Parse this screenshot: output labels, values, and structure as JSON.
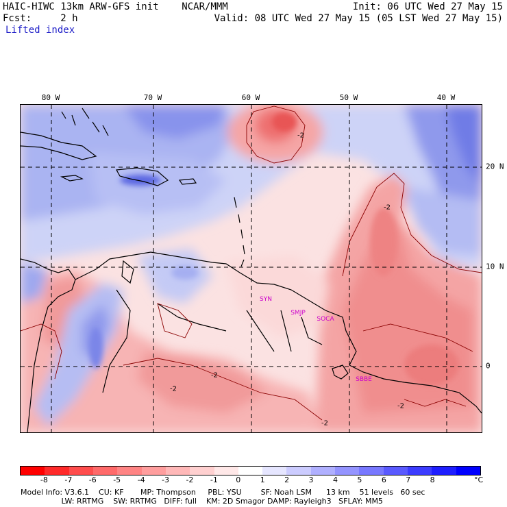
{
  "header": {
    "model_title": "HAIC-HIWC 13km ARW-GFS init    NCAR/MMM",
    "init_text": "Init: 06 UTC Wed 27 May 15",
    "fcst_text": "Fcst:     2 h",
    "valid_text": "Valid: 08 UTC Wed 27 May 15 (05 LST Wed 27 May 15)",
    "field_name": "Lifted index"
  },
  "map": {
    "longitude_labels": [
      "80 W",
      "70 W",
      "60 W",
      "50 W",
      "40 W"
    ],
    "latitude_labels": [
      "20 N",
      "10 N",
      "0"
    ],
    "stations": [
      "SYN",
      "SMJP",
      "SOCA",
      "SBBE"
    ],
    "contour_label": "-2",
    "colors": {
      "coastline": "#000000",
      "contour": "#8a0000",
      "grid": "#000000",
      "station": "#cc00cc"
    }
  },
  "colorbar": {
    "tick_labels": [
      "-8",
      "-7",
      "-6",
      "-5",
      "-4",
      "-3",
      "-2",
      "-1",
      "0",
      "1",
      "2",
      "3",
      "4",
      "5",
      "6",
      "7",
      "8"
    ],
    "unit": "°C",
    "colors": [
      "#ff0000",
      "#ff2a2a",
      "#ff4d4d",
      "#ff6a6a",
      "#ff8484",
      "#ff9e9e",
      "#ffb8b8",
      "#ffd0d0",
      "#ffe8e8",
      "#ffffff",
      "#e6e6ff",
      "#ccccff",
      "#b0b0ff",
      "#9494ff",
      "#7878ff",
      "#5a5aff",
      "#3c3cff",
      "#1e1eff",
      "#0000ff"
    ]
  },
  "footer": {
    "line1": "Model Info: V3.6.1    CU: KF       MP: Thompson     PBL: YSU        SF: Noah LSM      13 km    51 levels   60 sec",
    "line2": "                 LW: RRTMG    SW: RRTMG   DIFF: full    KM: 2D Smagor DAMP: Rayleigh3   SFLAY: MM5"
  }
}
